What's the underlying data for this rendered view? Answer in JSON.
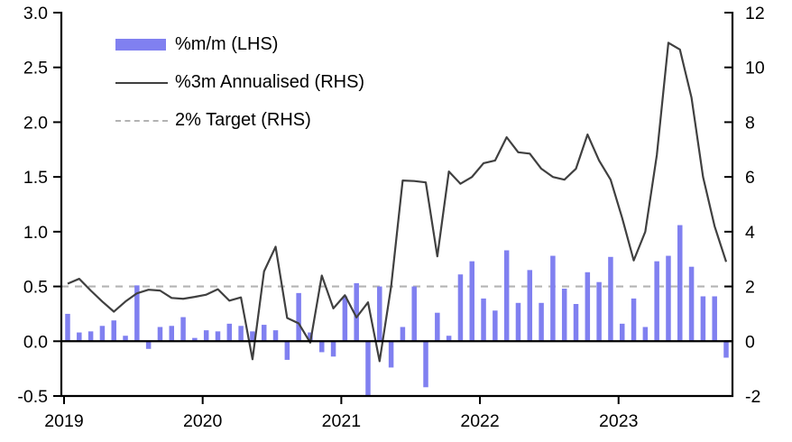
{
  "chart": {
    "legend": [
      {
        "label": "%m/m (LHS)",
        "swatch": "bar",
        "color": "#8080f0"
      },
      {
        "label": "%3m Annualised (RHS)",
        "swatch": "line",
        "color": "#404040"
      },
      {
        "label": "2% Target (RHS)",
        "swatch": "dashed",
        "color": "#b3b3b3"
      }
    ]
  },
  "chart_data": {
    "type": "bar+line combo",
    "frequency": "monthly",
    "x_start": "2019-01",
    "x_end": "2023-10",
    "x_tick_labels": [
      "2019",
      "2020",
      "2021",
      "2022",
      "2023"
    ],
    "x_tick_month_index": [
      0,
      12,
      24,
      36,
      48
    ],
    "left_axis": {
      "min": -0.5,
      "max": 3.0,
      "tick_labels": [
        "3.0",
        "2.5",
        "2.0",
        "1.5",
        "1.0",
        "0.5",
        "0.0",
        "-0.5"
      ],
      "label": "%m/m"
    },
    "right_axis": {
      "min": -2,
      "max": 12,
      "tick_labels": [
        "12",
        "10",
        "8",
        "6",
        "4",
        "2",
        "0",
        "-2"
      ],
      "label": "%3m Annualised"
    },
    "target_line": {
      "name": "2% Target (RHS)",
      "axis": "right",
      "value": 2,
      "color": "#b3b3b3",
      "style": "dashed"
    },
    "grid": false,
    "legend_position": "top-left-inside",
    "series": [
      {
        "name": "%m/m (LHS)",
        "type": "bar",
        "axis": "left",
        "color": "#8080f0",
        "values": [
          0.25,
          0.08,
          0.09,
          0.14,
          0.19,
          0.05,
          0.51,
          -0.07,
          0.13,
          0.14,
          0.22,
          0.03,
          0.1,
          0.09,
          0.16,
          0.14,
          0.09,
          0.15,
          0.1,
          -0.17,
          0.44,
          0.08,
          -0.1,
          -0.14,
          0.41,
          0.53,
          -0.5,
          0.5,
          -0.24,
          0.13,
          0.5,
          -0.42,
          0.26,
          0.05,
          0.61,
          0.73,
          0.39,
          0.28,
          0.83,
          0.35,
          0.65,
          0.35,
          0.78,
          0.48,
          0.34,
          0.63,
          0.54,
          0.77,
          0.16,
          0.39,
          0.13,
          0.73,
          0.78,
          1.06,
          0.68,
          0.41,
          0.41,
          -0.15
        ]
      },
      {
        "name": "%3m Annualised (RHS)",
        "type": "line",
        "axis": "right",
        "color": "#404040",
        "values": [
          2.1,
          2.28,
          1.85,
          1.45,
          1.08,
          1.45,
          1.75,
          1.88,
          1.85,
          1.58,
          1.55,
          1.62,
          1.7,
          1.9,
          1.48,
          1.6,
          -0.66,
          2.55,
          3.45,
          0.85,
          0.65,
          -0.05,
          2.4,
          1.2,
          1.68,
          0.87,
          1.42,
          -0.73,
          2.0,
          5.87,
          5.85,
          5.8,
          3.1,
          6.2,
          5.75,
          6.0,
          6.5,
          6.6,
          7.45,
          6.9,
          6.85,
          6.3,
          6.0,
          5.9,
          6.3,
          7.55,
          6.6,
          5.9,
          4.5,
          2.95,
          4.0,
          6.8,
          10.9,
          10.65,
          8.9,
          6.0,
          4.2,
          2.9
        ]
      }
    ]
  }
}
